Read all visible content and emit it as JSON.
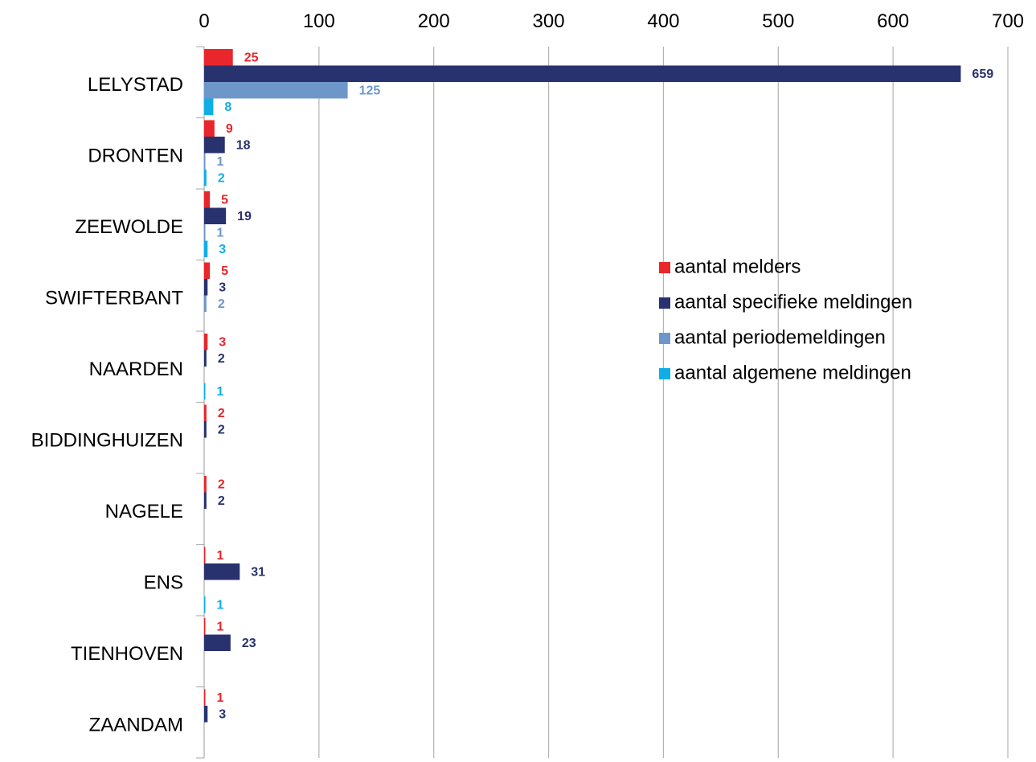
{
  "chart_data": {
    "type": "bar",
    "orientation": "horizontal",
    "categories": [
      "LELYSTAD",
      "DRONTEN",
      "ZEEWOLDE",
      "SWIFTERBANT",
      "NAARDEN",
      "BIDDINGHUIZEN",
      "NAGELE",
      "ENS",
      "TIENHOVEN",
      "ZAANDAM"
    ],
    "series": [
      {
        "name": "aantal melders",
        "color": "#e8262c",
        "values": [
          25,
          9,
          5,
          5,
          3,
          2,
          2,
          1,
          1,
          1
        ]
      },
      {
        "name": "aantal specifieke meldingen",
        "color": "#27326e",
        "values": [
          659,
          18,
          19,
          3,
          2,
          2,
          2,
          31,
          23,
          3
        ]
      },
      {
        "name": "aantal periodemeldingen",
        "color": "#6d97c9",
        "values": [
          125,
          1,
          1,
          2,
          null,
          null,
          null,
          null,
          null,
          null
        ]
      },
      {
        "name": "aantal algemene meldingen",
        "color": "#10aee6",
        "values": [
          8,
          2,
          3,
          null,
          1,
          null,
          null,
          1,
          null,
          null
        ]
      }
    ],
    "xlim": [
      0,
      700
    ],
    "xticks": [
      0,
      100,
      200,
      300,
      400,
      500,
      600,
      700
    ],
    "grid": true,
    "axis_position": "top",
    "legend_position": "right-center"
  }
}
